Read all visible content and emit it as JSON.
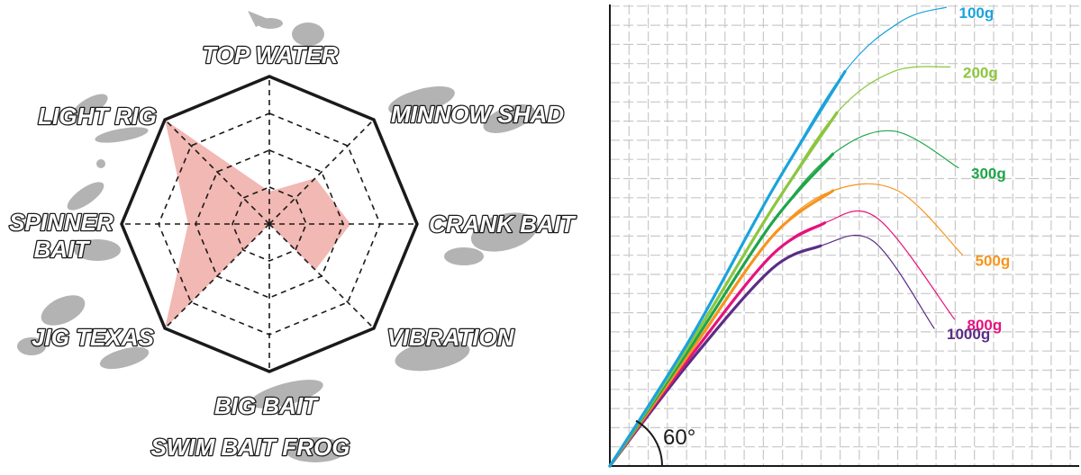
{
  "chart_data": [
    {
      "type": "radar",
      "title": "",
      "axes": [
        {
          "label": "TOP WATER",
          "value": 0.22
        },
        {
          "label": "MINNOW SHAD",
          "value": 0.44
        },
        {
          "label": "CRANK BAIT",
          "value": 0.55
        },
        {
          "label": "VIBRATION",
          "value": 0.44
        },
        {
          "label": "BIG BAIT SWIM BAIT FROG",
          "value": 0.0
        },
        {
          "label": "JIG TEXAS",
          "value": 1.0
        },
        {
          "label": "SPINNER BAIT",
          "value": 0.55
        },
        {
          "label": "LIGHT RIG",
          "value": 1.0
        }
      ],
      "display_labels": [
        "TOP WATER",
        "MINNOW SHAD",
        "CRANK BAIT",
        "VIBRATION",
        "BIG BAIT",
        "SWIM BAIT  FROG",
        "JIG  TEXAS",
        "SPINNER",
        "BAIT",
        "LIGHT RIG"
      ],
      "rings": 4,
      "range": [
        0,
        1
      ],
      "fill_color": "#f2b8b3",
      "outline_color": "#1a1a1a"
    },
    {
      "type": "line",
      "title": "",
      "grid": true,
      "angle_label": "60°",
      "series": [
        {
          "name": "100g",
          "color": "#1aa3dc",
          "points": [
            [
              0,
              0
            ],
            [
              0.2,
              0.28
            ],
            [
              0.4,
              0.6
            ],
            [
              0.58,
              0.86
            ],
            [
              0.72,
              0.97
            ],
            [
              0.83,
              1.0
            ]
          ]
        },
        {
          "name": "200g",
          "color": "#8cc63f",
          "points": [
            [
              0,
              0
            ],
            [
              0.2,
              0.27
            ],
            [
              0.4,
              0.56
            ],
            [
              0.56,
              0.77
            ],
            [
              0.7,
              0.86
            ],
            [
              0.84,
              0.87
            ]
          ]
        },
        {
          "name": "300g",
          "color": "#1fa549",
          "points": [
            [
              0,
              0
            ],
            [
              0.2,
              0.26
            ],
            [
              0.4,
              0.53
            ],
            [
              0.55,
              0.68
            ],
            [
              0.7,
              0.73
            ],
            [
              0.86,
              0.65
            ]
          ]
        },
        {
          "name": "500g",
          "color": "#f7941d",
          "points": [
            [
              0,
              0
            ],
            [
              0.2,
              0.25
            ],
            [
              0.4,
              0.5
            ],
            [
              0.55,
              0.6
            ],
            [
              0.71,
              0.6
            ],
            [
              0.87,
              0.46
            ]
          ]
        },
        {
          "name": "800g",
          "color": "#e5137d",
          "points": [
            [
              0,
              0
            ],
            [
              0.2,
              0.24
            ],
            [
              0.4,
              0.46
            ],
            [
              0.53,
              0.53
            ],
            [
              0.66,
              0.54
            ],
            [
              0.85,
              0.32
            ]
          ]
        },
        {
          "name": "1000g",
          "color": "#5b2d86",
          "points": [
            [
              0,
              0
            ],
            [
              0.2,
              0.23
            ],
            [
              0.4,
              0.43
            ],
            [
              0.52,
              0.48
            ],
            [
              0.65,
              0.49
            ],
            [
              0.8,
              0.3
            ]
          ]
        }
      ]
    }
  ]
}
